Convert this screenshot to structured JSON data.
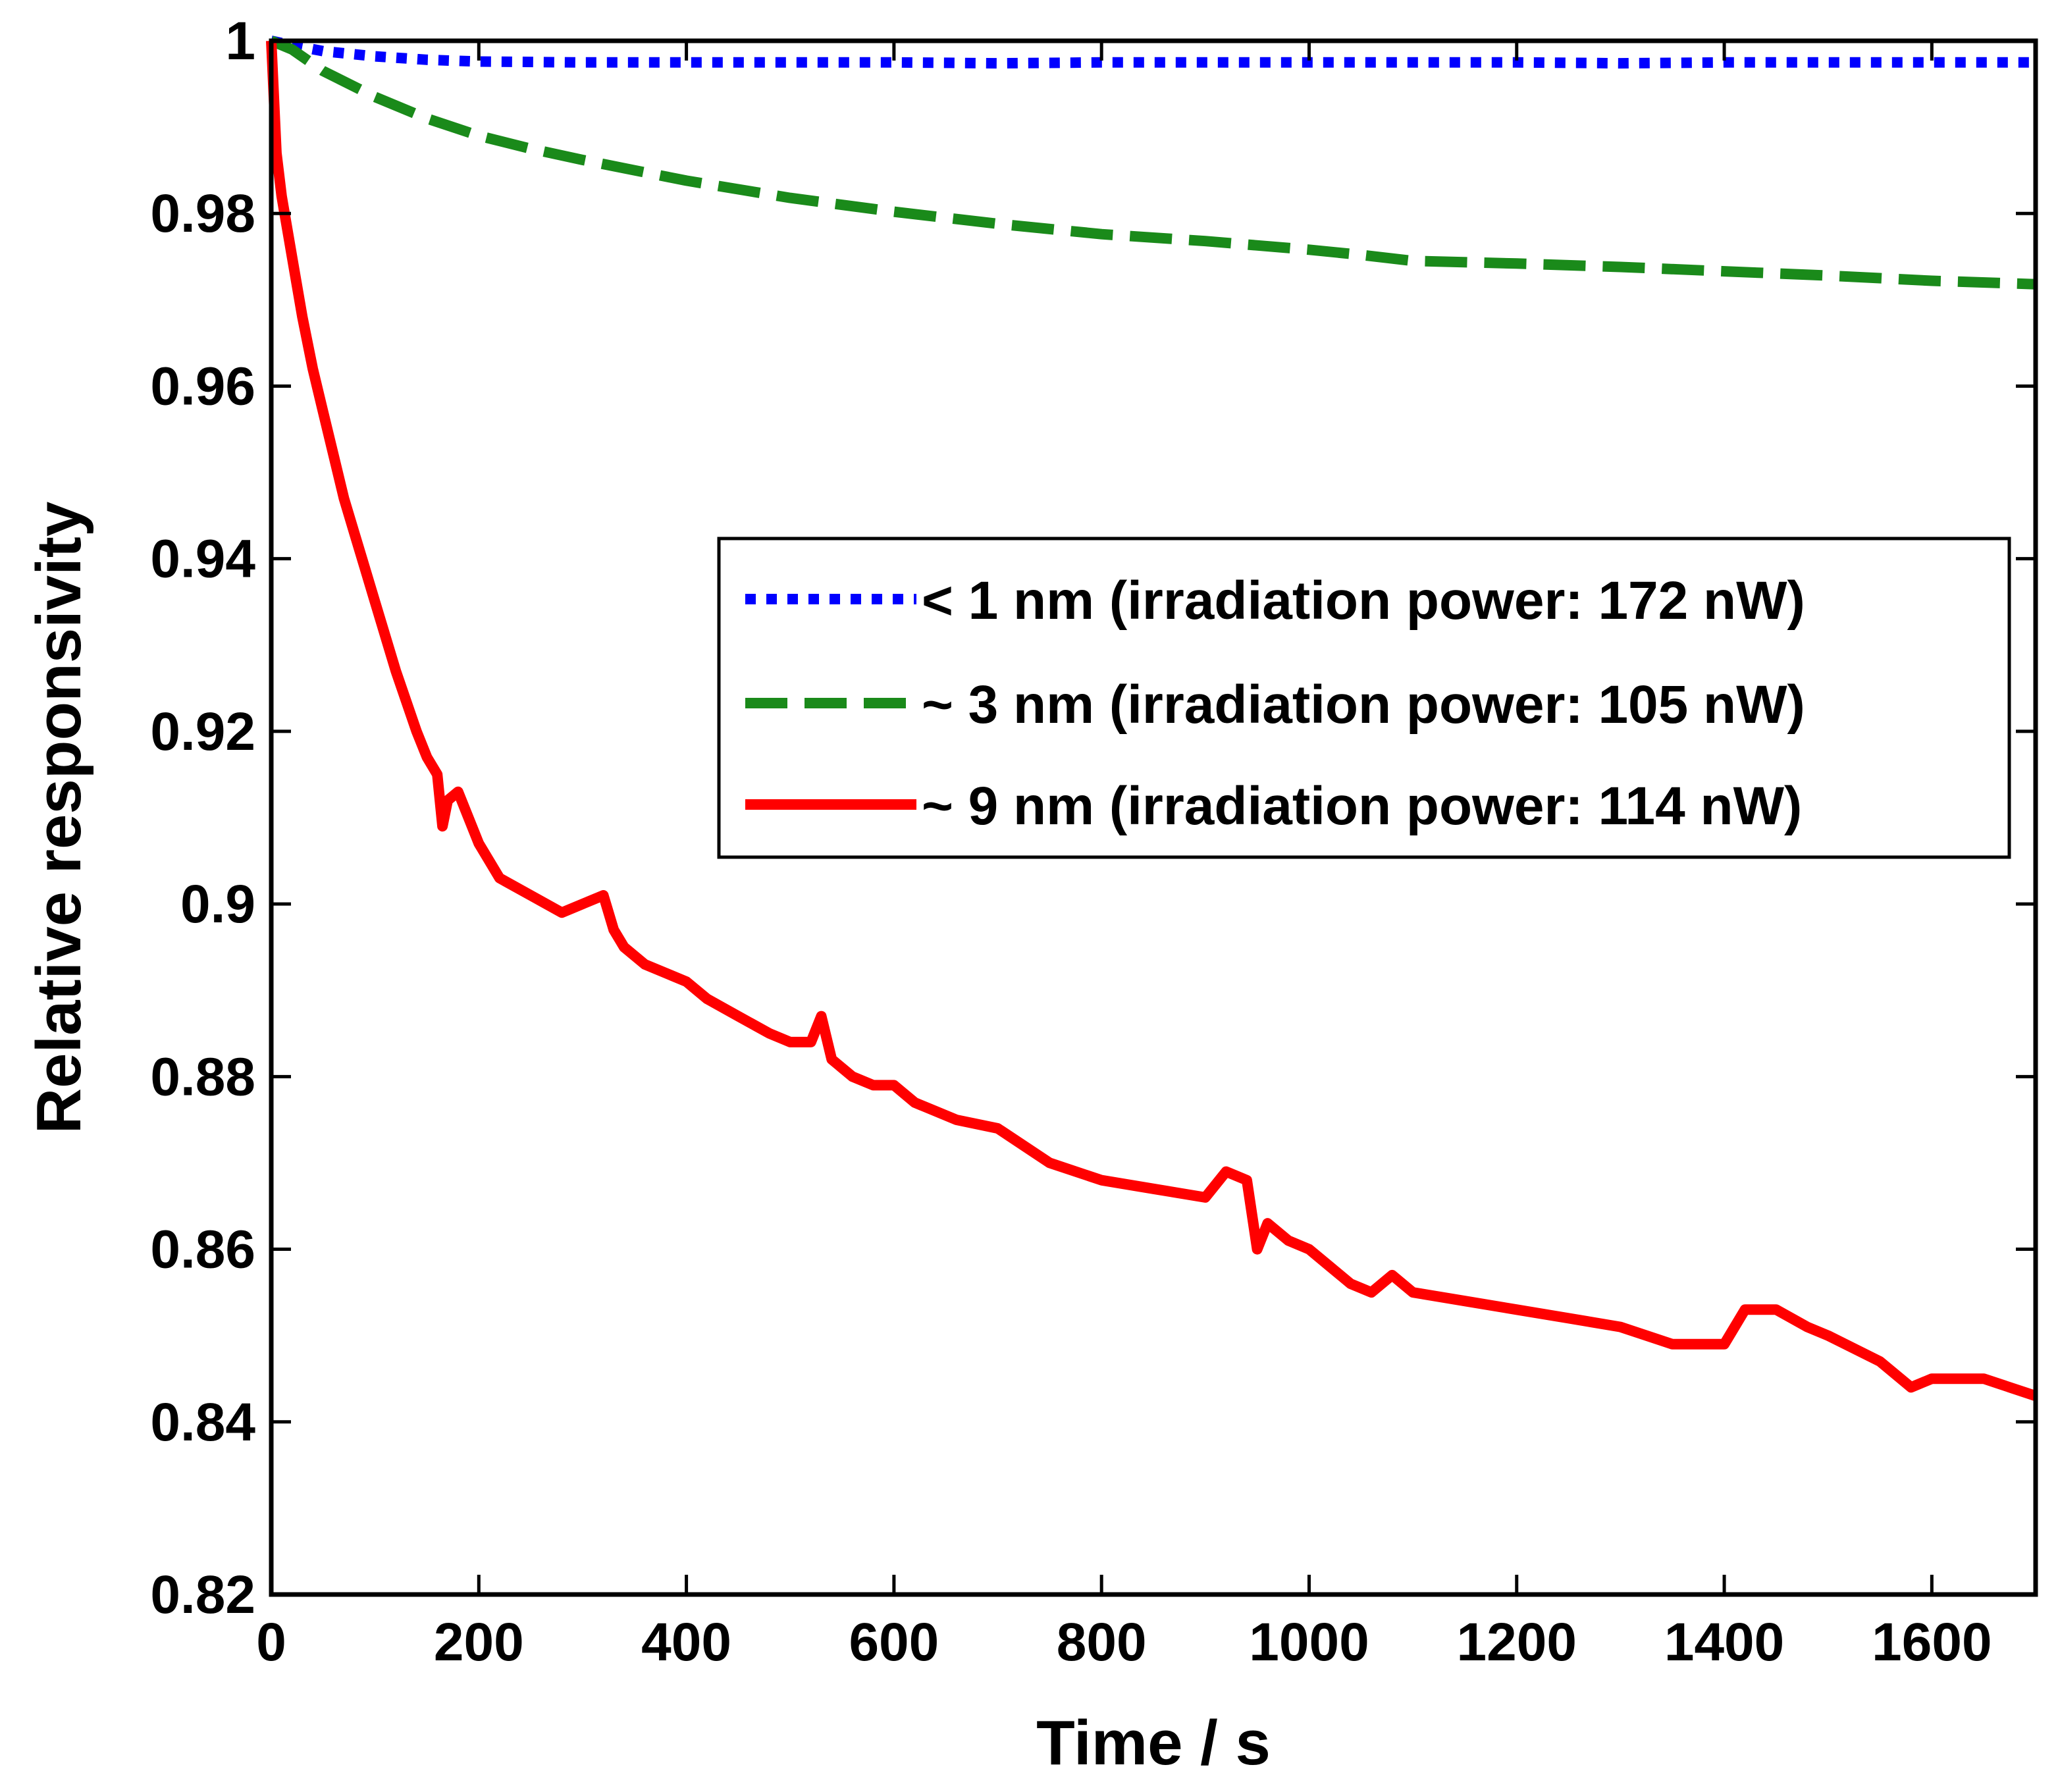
{
  "chart_data": {
    "type": "line",
    "title": "",
    "xlabel": "Time / s",
    "ylabel": "Relative responsivity",
    "xlim": [
      0,
      1700
    ],
    "ylim": [
      0.82,
      1.0
    ],
    "xticks": [
      0,
      200,
      400,
      600,
      800,
      1000,
      1200,
      1400,
      1600
    ],
    "xtick_labels": [
      "0",
      "200",
      "400",
      "600",
      "800",
      "1000",
      "1200",
      "1400",
      "1600"
    ],
    "yticks": [
      0.82,
      0.84,
      0.86,
      0.88,
      0.9,
      0.92,
      0.94,
      0.96,
      0.98,
      1.0
    ],
    "ytick_labels": [
      "0.82",
      "0.84",
      "0.86",
      "0.88",
      "0.9",
      "0.92",
      "0.94",
      "0.96",
      "0.98",
      "1"
    ],
    "grid": false,
    "legend_position": "center-right",
    "series": [
      {
        "name": "< 1 nm (irradiation power: 172 nW)",
        "color": "#0000ff",
        "style": "dotted",
        "x": [
          0,
          20,
          50,
          100,
          150,
          200,
          300,
          400,
          500,
          600,
          700,
          800,
          900,
          1000,
          1100,
          1200,
          1300,
          1400,
          1500,
          1600,
          1700
        ],
        "y": [
          1.0,
          0.9995,
          0.9988,
          0.9982,
          0.9978,
          0.9976,
          0.9975,
          0.9975,
          0.9975,
          0.9975,
          0.9974,
          0.9975,
          0.9975,
          0.9975,
          0.9975,
          0.9975,
          0.9974,
          0.9975,
          0.9975,
          0.9975,
          0.9975
        ]
      },
      {
        "name": "~ 3 nm (irradiation power: 105 nW)",
        "color": "#1a8a1a",
        "style": "dashed",
        "x": [
          0,
          20,
          50,
          100,
          150,
          200,
          250,
          300,
          350,
          400,
          450,
          500,
          600,
          700,
          800,
          900,
          1000,
          1050,
          1100,
          1200,
          1300,
          1400,
          1500,
          1600,
          1700
        ],
        "y": [
          1.0,
          0.999,
          0.9965,
          0.9935,
          0.991,
          0.989,
          0.9875,
          0.9862,
          0.985,
          0.9838,
          0.9828,
          0.9818,
          0.9802,
          0.9788,
          0.9776,
          0.9768,
          0.9758,
          0.9752,
          0.9745,
          0.9742,
          0.9738,
          0.9733,
          0.9728,
          0.9722,
          0.9718
        ]
      },
      {
        "name": "~ 9 nm (irradiation power: 114 nW)",
        "color": "#ff0000",
        "style": "solid",
        "x": [
          0,
          5,
          10,
          20,
          30,
          40,
          50,
          60,
          70,
          80,
          90,
          100,
          120,
          140,
          150,
          160,
          165,
          170,
          180,
          200,
          220,
          250,
          280,
          300,
          320,
          330,
          340,
          360,
          380,
          400,
          420,
          450,
          480,
          500,
          520,
          530,
          540,
          560,
          580,
          600,
          620,
          640,
          660,
          700,
          750,
          800,
          850,
          900,
          920,
          940,
          950,
          960,
          980,
          1000,
          1020,
          1040,
          1060,
          1080,
          1100,
          1150,
          1200,
          1250,
          1300,
          1350,
          1400,
          1420,
          1450,
          1480,
          1500,
          1550,
          1580,
          1600,
          1650,
          1700
        ],
        "y": [
          1.0,
          0.987,
          0.982,
          0.975,
          0.968,
          0.962,
          0.957,
          0.952,
          0.947,
          0.943,
          0.939,
          0.935,
          0.927,
          0.92,
          0.917,
          0.915,
          0.909,
          0.912,
          0.913,
          0.907,
          0.903,
          0.901,
          0.899,
          0.9,
          0.901,
          0.897,
          0.895,
          0.893,
          0.892,
          0.891,
          0.889,
          0.887,
          0.885,
          0.884,
          0.884,
          0.887,
          0.882,
          0.88,
          0.879,
          0.879,
          0.877,
          0.876,
          0.875,
          0.874,
          0.87,
          0.868,
          0.867,
          0.866,
          0.869,
          0.868,
          0.86,
          0.863,
          0.861,
          0.86,
          0.858,
          0.856,
          0.855,
          0.857,
          0.855,
          0.854,
          0.853,
          0.852,
          0.851,
          0.849,
          0.849,
          0.853,
          0.853,
          0.851,
          0.85,
          0.847,
          0.844,
          0.845,
          0.845,
          0.843
        ]
      }
    ]
  }
}
